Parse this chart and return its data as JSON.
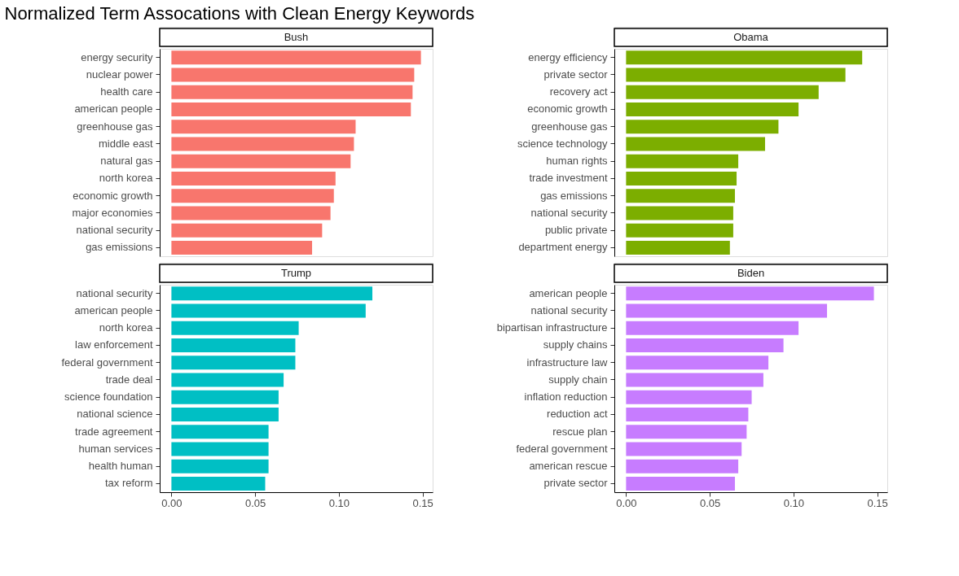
{
  "chart_data": [
    {
      "type": "bar",
      "orientation": "horizontal",
      "title": "Normalized Term Assocations with Clean Energy Keywords",
      "subtitle": "Bush",
      "categories": [
        "energy security",
        "nuclear power",
        "health care",
        "american people",
        "greenhouse gas",
        "middle east",
        "natural gas",
        "north korea",
        "economic growth",
        "major economies",
        "national security",
        "gas emissions"
      ],
      "values": [
        0.149,
        0.145,
        0.144,
        0.143,
        0.11,
        0.109,
        0.107,
        0.098,
        0.097,
        0.095,
        0.09,
        0.084
      ],
      "color": "#f8766d",
      "xlim": [
        -0.007,
        0.156
      ],
      "tick_labels": "y",
      "grid": false
    },
    {
      "type": "bar",
      "orientation": "horizontal",
      "subtitle": "Obama",
      "categories": [
        "energy efficiency",
        "private sector",
        "recovery act",
        "economic growth",
        "greenhouse gas",
        "science technology",
        "human rights",
        "trade investment",
        "gas emissions",
        "national security",
        "public private",
        "department energy"
      ],
      "values": [
        0.141,
        0.131,
        0.115,
        0.103,
        0.091,
        0.083,
        0.067,
        0.066,
        0.065,
        0.064,
        0.064,
        0.062
      ],
      "color": "#7cae00",
      "xlim": [
        -0.007,
        0.156
      ],
      "tick_labels": "y",
      "grid": false
    },
    {
      "type": "bar",
      "orientation": "horizontal",
      "subtitle": "Trump",
      "categories": [
        "national security",
        "american people",
        "north korea",
        "law enforcement",
        "federal government",
        "trade deal",
        "science foundation",
        "national science",
        "trade agreement",
        "human services",
        "health human",
        "tax reform"
      ],
      "values": [
        0.12,
        0.116,
        0.076,
        0.074,
        0.074,
        0.067,
        0.064,
        0.064,
        0.058,
        0.058,
        0.058,
        0.056
      ],
      "color": "#00bfc4",
      "xlim": [
        -0.007,
        0.156
      ],
      "xticks": [
        {
          "value": 0,
          "label": "0.00"
        },
        {
          "value": 0.05,
          "label": "0.05"
        },
        {
          "value": 0.1,
          "label": "0.10"
        },
        {
          "value": 0.15,
          "label": "0.15"
        }
      ],
      "grid": false
    },
    {
      "type": "bar",
      "orientation": "horizontal",
      "subtitle": "Biden",
      "categories": [
        "american people",
        "national security",
        "bipartisan infrastructure",
        "supply chains",
        "infrastructure law",
        "supply chain",
        "inflation reduction",
        "reduction act",
        "rescue plan",
        "federal government",
        "american rescue",
        "private sector"
      ],
      "values": [
        0.148,
        0.12,
        0.103,
        0.094,
        0.085,
        0.082,
        0.075,
        0.073,
        0.072,
        0.069,
        0.067,
        0.065
      ],
      "color": "#c77cff",
      "xlim": [
        -0.007,
        0.156
      ],
      "xticks": [
        {
          "value": 0,
          "label": "0.00"
        },
        {
          "value": 0.05,
          "label": "0.05"
        },
        {
          "value": 0.1,
          "label": "0.10"
        },
        {
          "value": 0.15,
          "label": "0.15"
        }
      ],
      "grid": false
    }
  ]
}
